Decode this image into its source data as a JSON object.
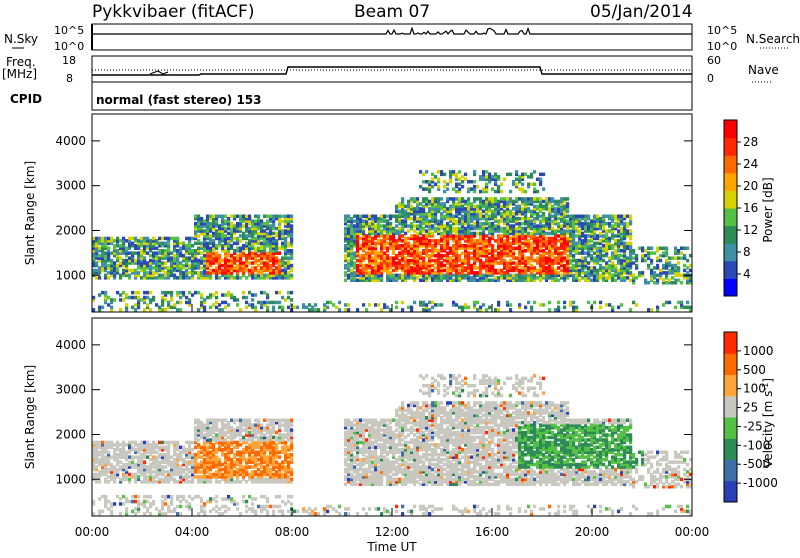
{
  "header": {
    "station": "Pykkvibaer (fitACF)",
    "beam": "Beam 07",
    "date": "05/Jan/2014"
  },
  "strip_panels": {
    "nsky_label": "N.Sky",
    "nsky_ticks": [
      "10^5",
      "10^0"
    ],
    "nsearch_label": "N.Search",
    "nsearch_ticks": [
      "10^5",
      "10^0"
    ],
    "freq_label": "Freq.",
    "freq_unit": "[MHz]",
    "freq_ticks": [
      "18",
      "8"
    ],
    "nave_label": "Nave",
    "nave_ticks": [
      "60",
      "0"
    ],
    "cpid_label": "CPID",
    "cpid_value": "normal (fast stereo) 153"
  },
  "colors": {
    "power_scale": [
      "#0000ff",
      "#2c48b4",
      "#3f8fa5",
      "#2e8b57",
      "#55c046",
      "#d4d200",
      "#ffa500",
      "#ff6a00",
      "#ff2a00",
      "#ff0000"
    ],
    "velocity_scale": [
      "#2a3fb4",
      "#3f6fa8",
      "#2e8b57",
      "#55c046",
      "#c8c8c0",
      "#ffa53b",
      "#ff6a00",
      "#ff2a00"
    ]
  },
  "chart_data": [
    {
      "type": "heatmap",
      "name": "power",
      "ylabel": "Slant Range [km]",
      "yticks": [
        "1000",
        "2000",
        "3000",
        "4000"
      ],
      "ylim": [
        180,
        4600
      ],
      "xticks": [
        "00:00",
        "04:00",
        "08:00",
        "12:00",
        "16:00",
        "20:00",
        "00:00"
      ],
      "colorbar_label": "Power [dB]",
      "colorbar_ticks": [
        "4",
        "8",
        "12",
        "16",
        "20",
        "24",
        "28"
      ],
      "colorbar_range": [
        0,
        32
      ]
    },
    {
      "type": "heatmap",
      "name": "velocity",
      "ylabel": "Slant Range [km]",
      "yticks": [
        "1000",
        "2000",
        "3000",
        "4000"
      ],
      "ylim": [
        180,
        4600
      ],
      "xticks": [
        "00:00",
        "04:00",
        "08:00",
        "12:00",
        "16:00",
        "20:00",
        "00:00"
      ],
      "xlabel": "Time UT",
      "colorbar_label": "Velocity [m s^-1]",
      "colorbar_ticks": [
        "1000",
        "500",
        "100",
        "25",
        "-25",
        "-100",
        "-500",
        "-1000"
      ]
    }
  ]
}
